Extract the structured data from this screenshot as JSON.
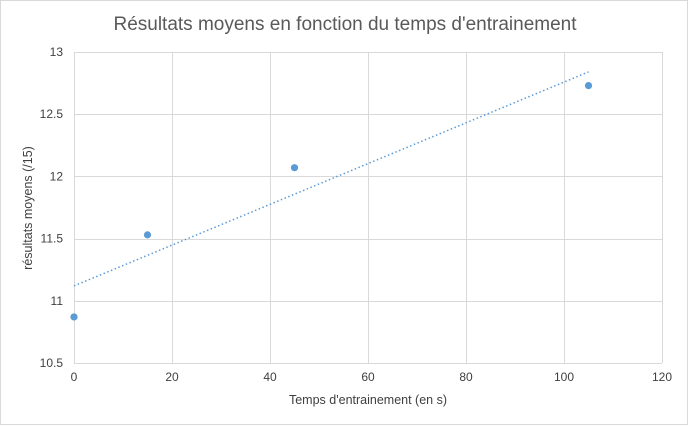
{
  "chart_data": {
    "type": "scatter",
    "title": "Résultats moyens en fonction du temps d'entrainement",
    "xlabel": "Temps d'entrainement (en s)",
    "ylabel": "résultats moyens (/15)",
    "xlim": [
      0,
      120
    ],
    "ylim": [
      10.5,
      13
    ],
    "xticks": [
      0,
      20,
      40,
      60,
      80,
      100,
      120
    ],
    "yticks": [
      10.5,
      11,
      11.5,
      12,
      12.5,
      13
    ],
    "grid": true,
    "legend": "none",
    "colors": {
      "point": "#5b9bd5",
      "trendline": "#5b9bd5"
    },
    "series": [
      {
        "x": [
          0,
          15,
          45,
          105
        ],
        "y": [
          10.87,
          11.53,
          12.07,
          12.73
        ]
      }
    ],
    "trendline": {
      "type": "linear",
      "x": [
        0,
        105
      ],
      "y": [
        11.12,
        12.84
      ]
    }
  }
}
